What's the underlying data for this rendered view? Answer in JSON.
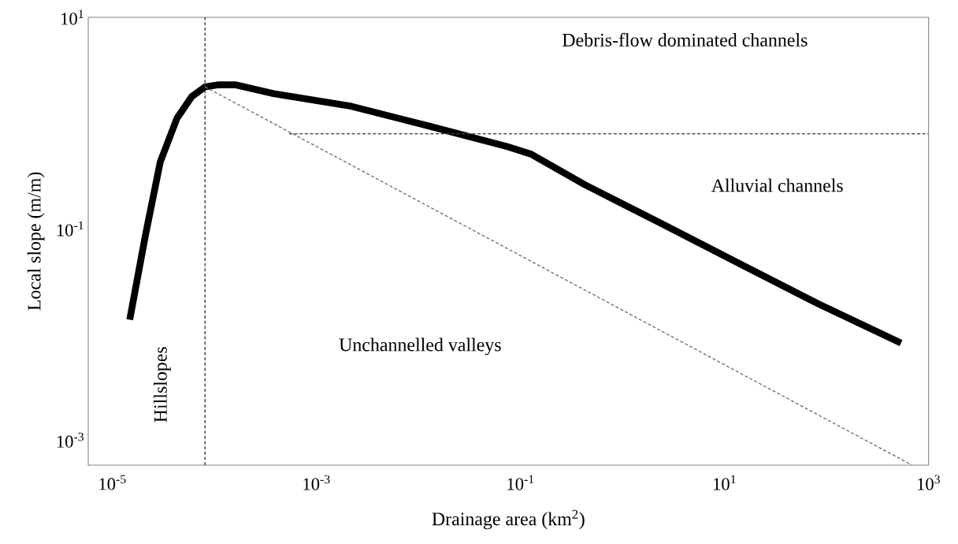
{
  "chart_data": {
    "type": "line",
    "xlabel": "Drainage area (km$^{2}$)",
    "ylabel": "Local slope (m/m)",
    "log": "xy",
    "grid": false,
    "marker": "none",
    "xlim": [
      5.8e-06,
      1000
    ],
    "ylim": [
      0.00058,
      10
    ],
    "xticks": [
      {
        "value": 1e-05,
        "label": "10$^{-5}$"
      },
      {
        "value": 0.001,
        "label": "10$^{-3}$"
      },
      {
        "value": 0.1,
        "label": "10$^{-1}$"
      },
      {
        "value": 10,
        "label": "10$^{1}$"
      },
      {
        "value": 1000,
        "label": "10$^{3}$"
      }
    ],
    "yticks": [
      {
        "value": 0.001,
        "label": "10$^{-3}$"
      },
      {
        "value": 0.1,
        "label": "10$^{-1}$"
      },
      {
        "value": 10,
        "label": "10$^{1}$"
      }
    ],
    "series": [
      {
        "color": "#000000",
        "line_style": "solid",
        "x": [
          1.48e-05,
          2.1e-05,
          2.95e-05,
          4.3e-05,
          6e-05,
          8.1e-05,
          0.00011,
          0.00016,
          0.00038,
          0.0022,
          0.013,
          0.074,
          0.126,
          0.43,
          2.5,
          14.5,
          83,
          537
        ],
        "values": [
          0.0138,
          0.085,
          0.43,
          1.11,
          1.78,
          2.2,
          2.3,
          2.3,
          1.9,
          1.44,
          0.93,
          0.6,
          0.51,
          0.26,
          0.11,
          0.046,
          0.0195,
          0.0083
        ]
      },
      {
        "color": "#777777",
        "line_style": "dashed",
        "x": [
          8.1e-05,
          690
        ],
        "values": [
          2.2,
          0.00058
        ]
      },
      {
        "color": "#444444",
        "line_style": "dashed",
        "x": [
          0.00054,
          1000
        ],
        "values": [
          0.79,
          0.79
        ]
      }
    ],
    "ref_lines": [
      {
        "axis": "x",
        "value": 8.1e-05,
        "color": "#444444",
        "line_style": "dashed"
      }
    ],
    "annotations": [
      "Debris-flow dominated channels",
      "Alluvial channels",
      "Unchannelled valleys",
      "Hillslopes"
    ]
  }
}
